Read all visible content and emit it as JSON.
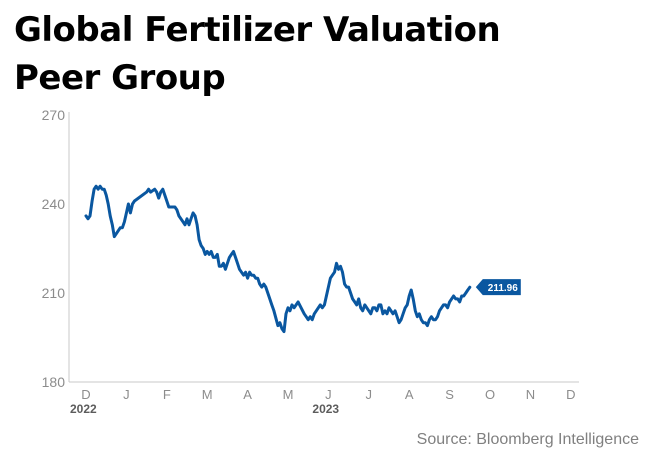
{
  "title": [
    "Global Fertilizer Valuation",
    "Peer Group"
  ],
  "source": "Source: Bloomberg Intelligence",
  "colors": {
    "line": "#0a57a0",
    "axis": "#c8c8c8",
    "tick_text": "#8c8c8c",
    "year_text": "#5c5c5c",
    "badge_bg": "#0a57a0",
    "badge_text": "#ffffff"
  },
  "chart_data": {
    "type": "line",
    "title": "Global Fertilizer Valuation Peer Group",
    "ylim": [
      180,
      270
    ],
    "yticks": [
      "270",
      "240",
      "210",
      "180"
    ],
    "xticks": [
      "D",
      "J",
      "F",
      "M",
      "A",
      "M",
      "J",
      "J",
      "A",
      "S",
      "O",
      "N",
      "D"
    ],
    "year_labels": [
      {
        "label": "2022",
        "tick_index": 0
      },
      {
        "label": "2023",
        "tick_index": 6
      }
    ],
    "last_value_label": "211.96",
    "series": [
      {
        "values": [
          [
            0,
            236
          ],
          [
            0.05,
            235
          ],
          [
            0.1,
            236
          ],
          [
            0.15,
            241
          ],
          [
            0.2,
            245
          ],
          [
            0.25,
            246
          ],
          [
            0.3,
            245
          ],
          [
            0.35,
            246
          ],
          [
            0.4,
            245
          ],
          [
            0.45,
            245
          ],
          [
            0.5,
            243
          ],
          [
            0.55,
            240
          ],
          [
            0.6,
            236
          ],
          [
            0.65,
            233
          ],
          [
            0.7,
            229
          ],
          [
            0.8,
            231
          ],
          [
            0.85,
            232
          ],
          [
            0.9,
            232
          ],
          [
            0.95,
            234
          ],
          [
            1.0,
            237
          ],
          [
            1.05,
            240
          ],
          [
            1.1,
            237
          ],
          [
            1.15,
            240
          ],
          [
            1.2,
            241
          ],
          [
            1.5,
            244
          ],
          [
            1.55,
            245
          ],
          [
            1.6,
            244
          ],
          [
            1.7,
            245
          ],
          [
            1.75,
            244
          ],
          [
            1.8,
            242
          ],
          [
            1.85,
            244
          ],
          [
            1.9,
            245
          ],
          [
            1.95,
            243
          ],
          [
            2.0,
            241
          ],
          [
            2.05,
            239
          ],
          [
            2.1,
            239
          ],
          [
            2.2,
            239
          ],
          [
            2.25,
            238
          ],
          [
            2.3,
            236
          ],
          [
            2.4,
            234
          ],
          [
            2.45,
            233
          ],
          [
            2.5,
            235
          ],
          [
            2.55,
            233
          ],
          [
            2.6,
            235
          ],
          [
            2.65,
            237
          ],
          [
            2.7,
            236
          ],
          [
            2.75,
            233
          ],
          [
            2.8,
            228
          ],
          [
            2.85,
            226
          ],
          [
            2.9,
            225
          ],
          [
            2.95,
            223
          ],
          [
            3.0,
            224
          ],
          [
            3.05,
            223
          ],
          [
            3.1,
            224
          ],
          [
            3.15,
            222
          ],
          [
            3.2,
            222
          ],
          [
            3.25,
            223
          ],
          [
            3.3,
            219
          ],
          [
            3.35,
            219
          ],
          [
            3.4,
            220
          ],
          [
            3.45,
            218
          ],
          [
            3.5,
            220
          ],
          [
            3.55,
            222
          ],
          [
            3.6,
            223
          ],
          [
            3.65,
            224
          ],
          [
            3.7,
            222
          ],
          [
            3.75,
            220
          ],
          [
            3.8,
            218
          ],
          [
            3.85,
            217
          ],
          [
            3.9,
            216
          ],
          [
            3.95,
            217
          ],
          [
            4.0,
            215
          ],
          [
            4.05,
            217
          ],
          [
            4.1,
            216
          ],
          [
            4.15,
            216
          ],
          [
            4.2,
            215
          ],
          [
            4.25,
            215
          ],
          [
            4.3,
            213
          ],
          [
            4.35,
            212
          ],
          [
            4.4,
            213
          ],
          [
            4.45,
            212
          ],
          [
            4.5,
            210
          ],
          [
            4.55,
            208
          ],
          [
            4.6,
            206
          ],
          [
            4.65,
            204
          ],
          [
            4.75,
            199
          ],
          [
            4.8,
            200
          ],
          [
            4.85,
            198
          ],
          [
            4.9,
            197
          ],
          [
            4.95,
            203
          ],
          [
            5.0,
            205
          ],
          [
            5.05,
            204
          ],
          [
            5.1,
            206
          ],
          [
            5.15,
            205
          ],
          [
            5.2,
            206
          ],
          [
            5.25,
            207
          ],
          [
            5.4,
            203
          ],
          [
            5.45,
            202
          ],
          [
            5.5,
            201
          ],
          [
            5.55,
            202
          ],
          [
            5.6,
            201
          ],
          [
            5.65,
            203
          ],
          [
            5.7,
            204
          ],
          [
            5.75,
            205
          ],
          [
            5.8,
            206
          ],
          [
            5.85,
            205
          ],
          [
            5.9,
            206
          ],
          [
            5.95,
            209
          ],
          [
            6.0,
            212
          ],
          [
            6.05,
            215
          ],
          [
            6.1,
            216
          ],
          [
            6.15,
            217
          ],
          [
            6.2,
            220
          ],
          [
            6.25,
            218
          ],
          [
            6.3,
            219
          ],
          [
            6.35,
            217
          ],
          [
            6.4,
            213
          ],
          [
            6.45,
            212
          ],
          [
            6.5,
            212
          ],
          [
            6.55,
            210
          ],
          [
            6.6,
            208
          ],
          [
            6.65,
            207
          ],
          [
            6.7,
            206
          ],
          [
            6.75,
            208
          ],
          [
            6.8,
            205
          ],
          [
            6.85,
            204
          ],
          [
            6.9,
            206
          ],
          [
            6.95,
            205
          ],
          [
            7.0,
            204
          ],
          [
            7.05,
            203
          ],
          [
            7.1,
            205
          ],
          [
            7.15,
            205
          ],
          [
            7.2,
            204
          ],
          [
            7.25,
            206
          ],
          [
            7.3,
            206
          ],
          [
            7.35,
            203
          ],
          [
            7.4,
            204
          ],
          [
            7.45,
            203
          ],
          [
            7.5,
            205
          ],
          [
            7.55,
            204
          ],
          [
            7.6,
            203
          ],
          [
            7.65,
            204
          ],
          [
            7.7,
            202
          ],
          [
            7.75,
            200
          ],
          [
            7.8,
            201
          ],
          [
            7.85,
            203
          ],
          [
            7.9,
            205
          ],
          [
            7.95,
            206
          ],
          [
            8.0,
            209
          ],
          [
            8.05,
            211
          ],
          [
            8.1,
            208
          ],
          [
            8.15,
            204
          ],
          [
            8.2,
            202
          ],
          [
            8.25,
            203
          ],
          [
            8.3,
            201
          ],
          [
            8.35,
            200
          ],
          [
            8.4,
            200
          ],
          [
            8.45,
            199
          ],
          [
            8.5,
            201
          ],
          [
            8.55,
            202
          ],
          [
            8.6,
            201
          ],
          [
            8.65,
            201
          ],
          [
            8.7,
            202
          ],
          [
            8.75,
            204
          ],
          [
            8.8,
            205
          ],
          [
            8.85,
            206
          ],
          [
            8.9,
            206
          ],
          [
            8.95,
            205
          ],
          [
            9.0,
            207
          ],
          [
            9.05,
            208
          ],
          [
            9.1,
            209
          ],
          [
            9.15,
            208
          ],
          [
            9.2,
            208
          ],
          [
            9.25,
            207
          ],
          [
            9.3,
            209
          ],
          [
            9.35,
            209
          ],
          [
            9.4,
            210
          ],
          [
            9.45,
            211
          ],
          [
            9.5,
            211.96
          ]
        ]
      }
    ]
  }
}
